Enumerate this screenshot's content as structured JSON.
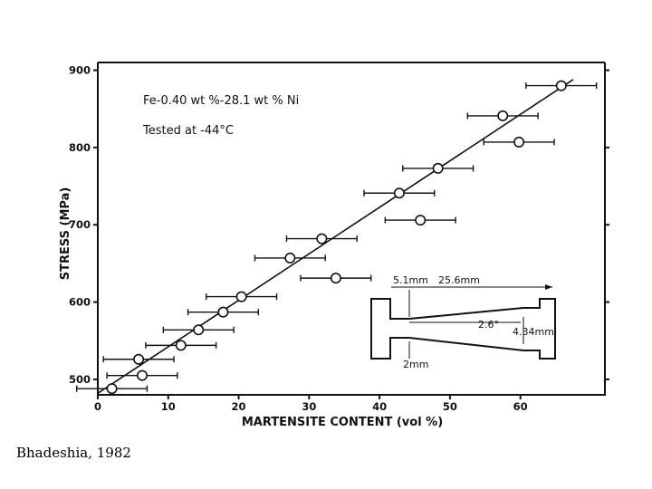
{
  "credit": "Bhadeshia, 1982",
  "chart_data": {
    "type": "scatter",
    "xlabel": "MARTENSITE CONTENT (vol %)",
    "ylabel": "STRESS (MPa)",
    "xlim": [
      0,
      72
    ],
    "ylim": [
      480,
      910
    ],
    "x_ticks": [
      0,
      10,
      20,
      30,
      40,
      50,
      60
    ],
    "y_ticks": [
      500,
      600,
      700,
      800,
      900
    ],
    "grid": false,
    "annotations": [
      "Fe-0.40 wt %-28.1 wt % Ni",
      "Tested at -44°C"
    ],
    "series": [
      {
        "points": [
          {
            "x": 2.0,
            "y": 488,
            "xerr": 5.0
          },
          {
            "x": 5.8,
            "y": 526,
            "xerr": 5.0
          },
          {
            "x": 6.3,
            "y": 505,
            "xerr": 5.0
          },
          {
            "x": 11.8,
            "y": 544,
            "xerr": 5.0
          },
          {
            "x": 14.3,
            "y": 564,
            "xerr": 5.0
          },
          {
            "x": 17.8,
            "y": 587,
            "xerr": 5.0
          },
          {
            "x": 20.4,
            "y": 607,
            "xerr": 5.0
          },
          {
            "x": 27.3,
            "y": 657,
            "xerr": 5.0
          },
          {
            "x": 31.8,
            "y": 682,
            "xerr": 5.0
          },
          {
            "x": 33.8,
            "y": 631,
            "xerr": 5.0
          },
          {
            "x": 42.8,
            "y": 741,
            "xerr": 5.0
          },
          {
            "x": 45.8,
            "y": 706,
            "xerr": 5.0
          },
          {
            "x": 48.3,
            "y": 773,
            "xerr": 5.0
          },
          {
            "x": 57.5,
            "y": 841,
            "xerr": 5.0
          },
          {
            "x": 59.8,
            "y": 807,
            "xerr": 5.0
          },
          {
            "x": 65.8,
            "y": 880,
            "xerr": 5.0
          }
        ]
      }
    ],
    "fit_line": {
      "x": [
        0,
        67.5
      ],
      "y": [
        482,
        888
      ]
    },
    "specimen_inset": {
      "labels": [
        "5.1mm",
        "25.6mm",
        "2.6°",
        "4.34mm",
        "2mm"
      ]
    }
  }
}
